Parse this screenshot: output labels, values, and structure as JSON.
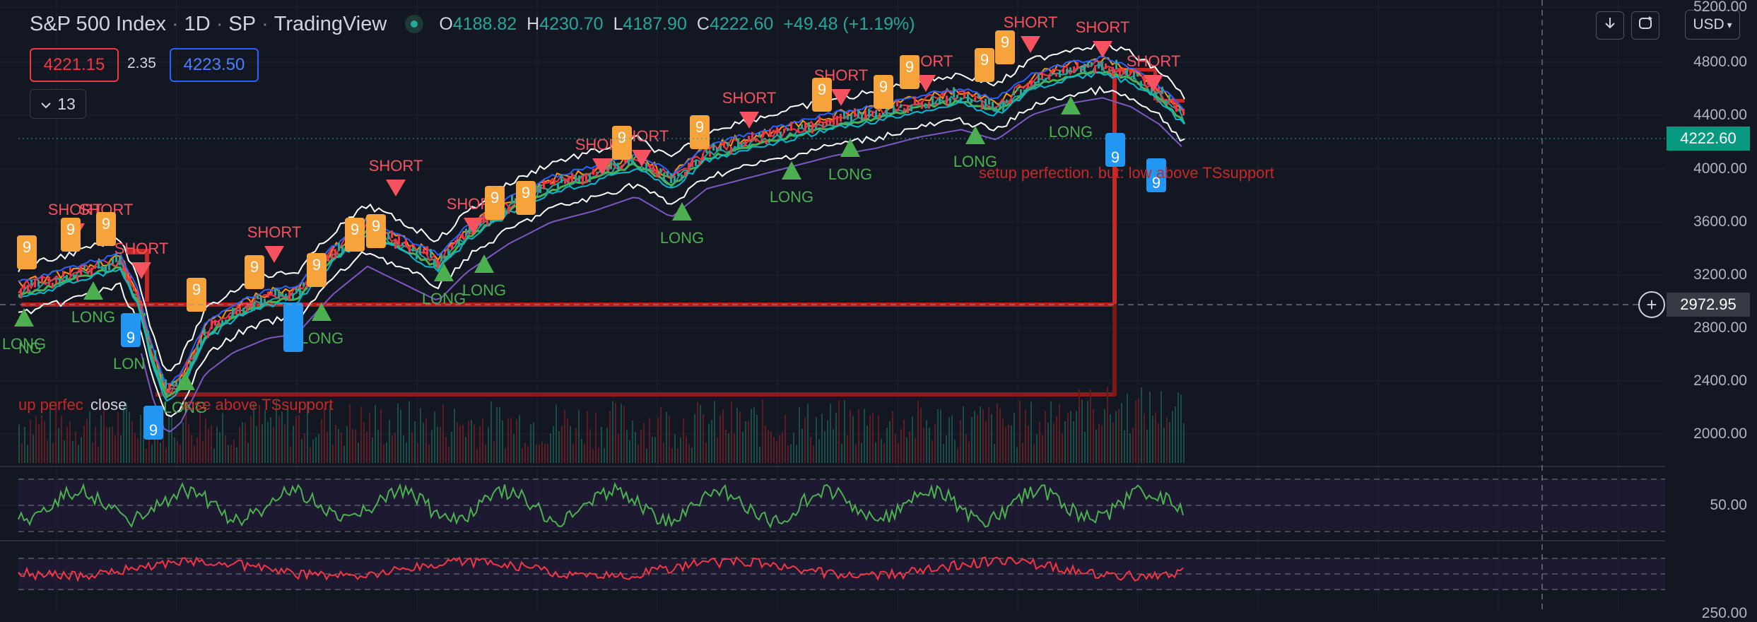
{
  "header": {
    "title": "S&P 500 Index",
    "interval": "1D",
    "exchange": "SP",
    "source": "TradingView",
    "ohlc": {
      "o_label": "O",
      "o": "4188.82",
      "h_label": "H",
      "h": "4230.70",
      "l_label": "L",
      "l": "4187.90",
      "c_label": "C",
      "c": "4222.60",
      "change": "+49.48 (+1.19%)"
    }
  },
  "trade": {
    "sell": "4221.15",
    "spread": "2.35",
    "buy": "4223.50"
  },
  "indicators_toggle": {
    "count": "13"
  },
  "toolbar": {
    "currency": "USD"
  },
  "price_axis": {
    "ticks": [
      "5200.00",
      "4800.00",
      "4400.00",
      "4000.00",
      "3600.00",
      "3200.00",
      "2800.00",
      "2400.00",
      "2000.00"
    ],
    "current_price": "4222.60",
    "crosshair_price": "2972.95",
    "osc_tick": "50.00",
    "bottom_tick_partial": "250.00"
  },
  "annotations": {
    "short_label": "SHORT",
    "long_label": "LONG",
    "count_label": "9",
    "setup_text_right": "setup perfection. but: low above TSsupport",
    "setup_text_left": "up perfec",
    "close_text": "close",
    "setup_text_left2": "lose above TSsupport",
    "edge_long": "NG",
    "partial_long": "LON"
  },
  "colors": {
    "bg": "#131722",
    "up": "#26a69a",
    "down": "#f23645",
    "long": "#4caf50",
    "short": "#f7525f",
    "nine_orange": "#f7a33b",
    "nine_blue": "#2196f3"
  }
}
